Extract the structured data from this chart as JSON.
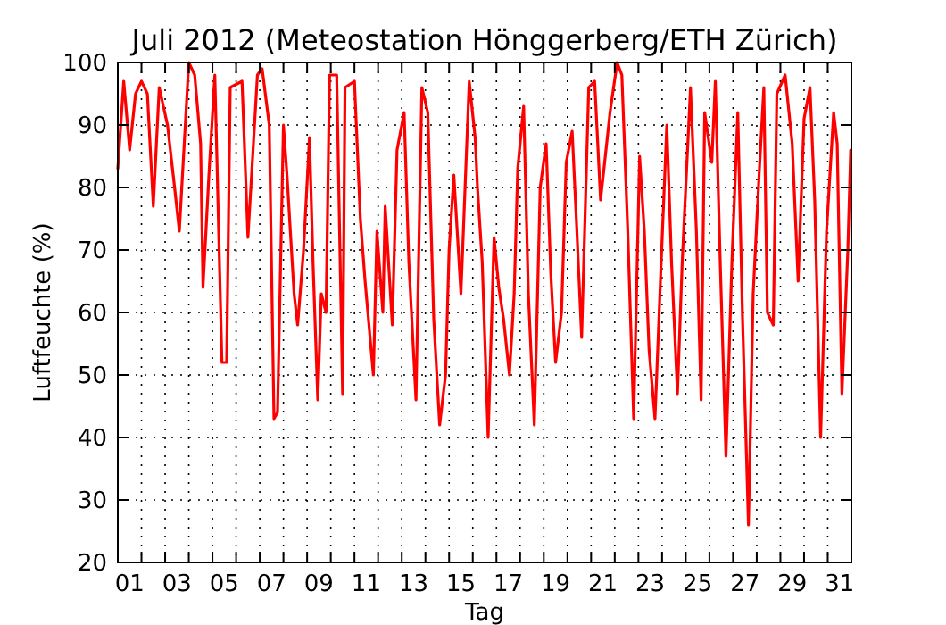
{
  "chart_data": {
    "type": "line",
    "title": "Juli 2012  (Meteostation Hönggerberg/ETH Zürich)",
    "xlabel": "Tag",
    "ylabel": "Luftfeuchte (%)",
    "xlim": [
      0,
      31
    ],
    "ylim": [
      20,
      100
    ],
    "yticks": [
      20,
      30,
      40,
      50,
      60,
      70,
      80,
      90,
      100
    ],
    "xticks": [
      {
        "value": 0.5,
        "label": "01"
      },
      {
        "value": 2.5,
        "label": "03"
      },
      {
        "value": 4.5,
        "label": "05"
      },
      {
        "value": 6.5,
        "label": "07"
      },
      {
        "value": 8.5,
        "label": "09"
      },
      {
        "value": 10.5,
        "label": "11"
      },
      {
        "value": 12.5,
        "label": "13"
      },
      {
        "value": 14.5,
        "label": "15"
      },
      {
        "value": 16.5,
        "label": "17"
      },
      {
        "value": 18.5,
        "label": "19"
      },
      {
        "value": 20.5,
        "label": "21"
      },
      {
        "value": 22.5,
        "label": "23"
      },
      {
        "value": 24.5,
        "label": "25"
      },
      {
        "value": 26.5,
        "label": "27"
      },
      {
        "value": 28.5,
        "label": "29"
      },
      {
        "value": 30.5,
        "label": "31"
      },
      {
        "value": 1,
        "label": null
      },
      {
        "value": 2,
        "label": null
      },
      {
        "value": 3,
        "label": null
      },
      {
        "value": 4,
        "label": null
      },
      {
        "value": 5,
        "label": null
      },
      {
        "value": 6,
        "label": null
      },
      {
        "value": 7,
        "label": null
      },
      {
        "value": 8,
        "label": null
      },
      {
        "value": 9,
        "label": null
      },
      {
        "value": 10,
        "label": null
      },
      {
        "value": 11,
        "label": null
      },
      {
        "value": 12,
        "label": null
      },
      {
        "value": 13,
        "label": null
      },
      {
        "value": 14,
        "label": null
      },
      {
        "value": 15,
        "label": null
      },
      {
        "value": 16,
        "label": null
      },
      {
        "value": 17,
        "label": null
      },
      {
        "value": 18,
        "label": null
      },
      {
        "value": 19,
        "label": null
      },
      {
        "value": 20,
        "label": null
      },
      {
        "value": 21,
        "label": null
      },
      {
        "value": 22,
        "label": null
      },
      {
        "value": 23,
        "label": null
      },
      {
        "value": 24,
        "label": null
      },
      {
        "value": 25,
        "label": null
      },
      {
        "value": 26,
        "label": null
      },
      {
        "value": 27,
        "label": null
      },
      {
        "value": 28,
        "label": null
      },
      {
        "value": 29,
        "label": null
      },
      {
        "value": 30,
        "label": null
      }
    ],
    "grid": true,
    "line_style": "solid",
    "series": [
      {
        "color": "#ff0000",
        "x": [
          0,
          0.25,
          0.5,
          0.75,
          1.0,
          1.25,
          1.5,
          1.75,
          2.1,
          2.4,
          2.6,
          3.0,
          3.25,
          3.5,
          3.6,
          3.85,
          4.1,
          4.4,
          4.6,
          4.75,
          5.25,
          5.5,
          5.9,
          6.1,
          6.4,
          6.6,
          6.75,
          7.0,
          7.15,
          7.45,
          7.6,
          7.85,
          8.1,
          8.25,
          8.45,
          8.6,
          8.8,
          8.95,
          9.25,
          9.5,
          9.6,
          10.0,
          10.25,
          10.45,
          10.8,
          10.95,
          11.2,
          11.3,
          11.6,
          11.8,
          12.1,
          12.3,
          12.6,
          12.85,
          13.1,
          13.35,
          13.6,
          13.85,
          14.0,
          14.2,
          14.5,
          14.85,
          15.1,
          15.2,
          15.4,
          15.65,
          15.9,
          16.1,
          16.3,
          16.55,
          16.75,
          16.9,
          17.15,
          17.35,
          17.6,
          17.85,
          18.1,
          18.3,
          18.5,
          18.75,
          18.95,
          19.2,
          19.4,
          19.6,
          19.9,
          20.15,
          20.4,
          20.8,
          21.1,
          21.3,
          21.55,
          21.8,
          22.05,
          22.25,
          22.45,
          22.7,
          22.95,
          23.2,
          23.4,
          23.65,
          23.85,
          24.2,
          24.45,
          24.65,
          24.8,
          25.1,
          25.25,
          25.45,
          25.7,
          25.95,
          26.2,
          26.4,
          26.65,
          26.85,
          27.1,
          27.3,
          27.45,
          27.7,
          27.85,
          28.2,
          28.5,
          28.75,
          29.0,
          29.25,
          29.45,
          29.7,
          29.95,
          30.25,
          30.4,
          30.6,
          30.85,
          30.97
        ],
        "values": [
          83,
          97,
          86,
          95,
          97,
          95,
          77,
          96,
          90,
          80,
          73,
          100,
          98,
          87,
          64,
          82,
          98,
          52,
          52,
          96,
          97,
          72,
          98,
          99,
          90,
          43,
          44,
          90,
          82,
          63,
          58,
          70,
          88,
          68,
          46,
          63,
          60,
          98,
          98,
          47,
          96,
          97,
          75,
          65,
          50,
          73,
          60,
          77,
          58,
          86,
          92,
          68,
          46,
          96,
          92,
          59,
          42,
          50,
          70,
          82,
          63,
          97,
          88,
          80,
          68,
          40,
          72,
          64,
          59,
          50,
          63,
          83,
          93,
          63,
          42,
          80,
          87,
          66,
          52,
          60,
          84,
          89,
          73,
          56,
          96,
          97,
          78,
          92,
          100,
          98,
          73,
          43,
          85,
          73,
          54,
          43,
          67,
          90,
          68,
          47,
          68,
          96,
          73,
          46,
          92,
          84,
          97,
          69,
          37,
          68,
          92,
          59,
          26,
          63,
          82,
          96,
          60,
          58,
          95,
          98,
          87,
          65,
          91,
          96,
          78,
          40,
          73,
          92,
          87,
          47,
          70,
          86
        ]
      }
    ]
  }
}
